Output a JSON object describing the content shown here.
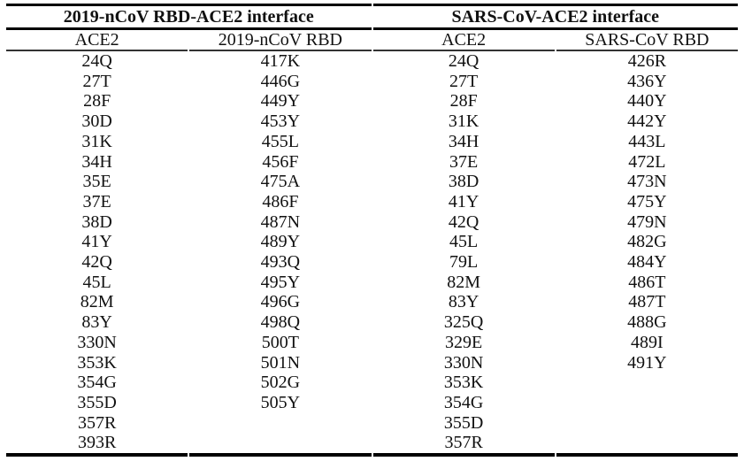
{
  "table": {
    "group_headers": [
      {
        "label": "2019-nCoV RBD-ACE2 interface"
      },
      {
        "label": "SARS-CoV-ACE2 interface"
      }
    ],
    "column_headers": [
      "ACE2",
      "2019-nCoV RBD",
      "ACE2",
      "SARS-CoV RBD"
    ],
    "columns": {
      "ncov_ace2": [
        "24Q",
        "27T",
        "28F",
        "30D",
        "31K",
        "34H",
        "35E",
        "37E",
        "38D",
        "41Y",
        "42Q",
        "45L",
        "82M",
        "83Y",
        "330N",
        "353K",
        "354G",
        "355D",
        "357R",
        "393R"
      ],
      "ncov_rbd": [
        "417K",
        "446G",
        "449Y",
        "453Y",
        "455L",
        "456F",
        "475A",
        "486F",
        "487N",
        "489Y",
        "493Q",
        "495Y",
        "496G",
        "498Q",
        "500T",
        "501N",
        "502G",
        "505Y"
      ],
      "sars_ace2": [
        "24Q",
        "27T",
        "28F",
        "31K",
        "34H",
        "37E",
        "38D",
        "41Y",
        "42Q",
        "45L",
        "79L",
        "82M",
        "83Y",
        "325Q",
        "329E",
        "330N",
        "353K",
        "354G",
        "355D",
        "357R"
      ],
      "sars_rbd": [
        "426R",
        "436Y",
        "440Y",
        "442Y",
        "443L",
        "472L",
        "473N",
        "475Y",
        "479N",
        "482G",
        "484Y",
        "486T",
        "487T",
        "488G",
        "489I",
        "491Y"
      ]
    }
  },
  "colors": {
    "rule_heavy": "#000000",
    "rule_light": "#333333",
    "text": "#111111",
    "background": "#ffffff"
  }
}
